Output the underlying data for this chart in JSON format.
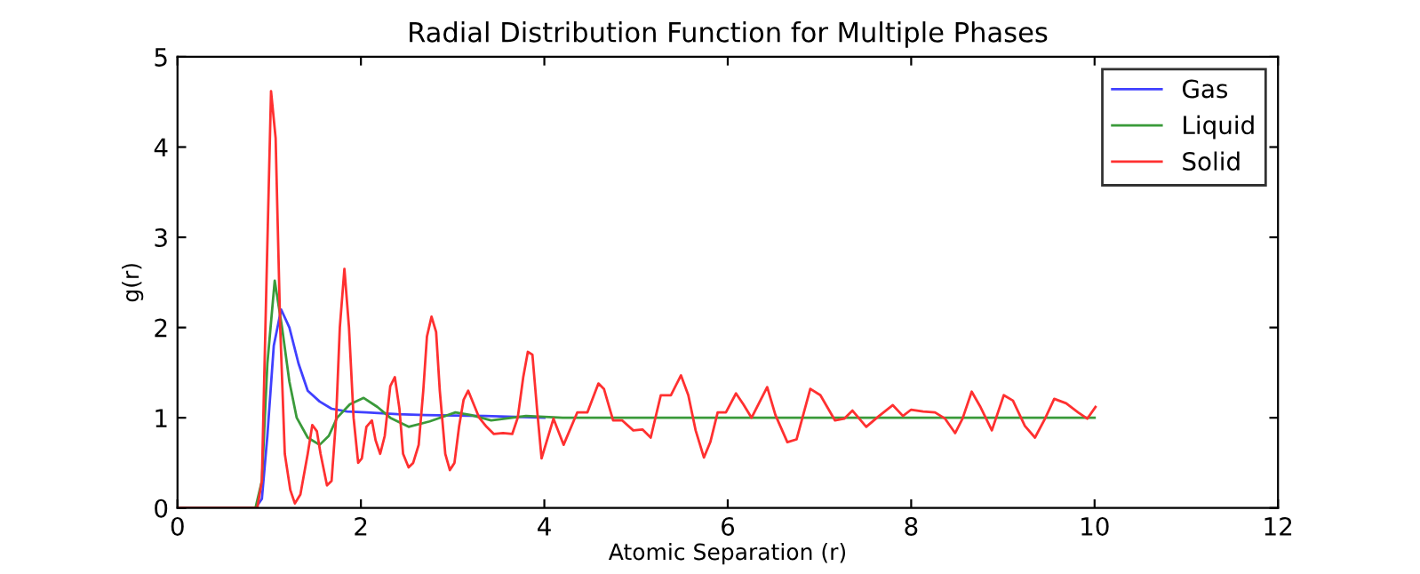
{
  "chart_data": {
    "type": "line",
    "title": "Radial Distribution Function for Multiple Phases",
    "xlabel": "Atomic Separation (r)",
    "ylabel": "g(r)",
    "xlim": [
      0,
      12
    ],
    "ylim": [
      0,
      5
    ],
    "xticks": [
      0,
      2,
      4,
      6,
      8,
      10,
      12
    ],
    "yticks": [
      0,
      1,
      2,
      3,
      4,
      5
    ],
    "grid": false,
    "legend": "top right",
    "marker": "none",
    "line_style": "solid",
    "series": [
      {
        "name": "Gas",
        "color": "#4040ff",
        "x": [
          0,
          0.85,
          0.92,
          0.98,
          1.05,
          1.13,
          1.22,
          1.32,
          1.42,
          1.55,
          1.68,
          1.85,
          2.06,
          2.4,
          2.7,
          3.35,
          4
        ],
        "values": [
          0,
          0,
          0.1,
          0.8,
          1.8,
          2.2,
          2.0,
          1.6,
          1.3,
          1.18,
          1.1,
          1.07,
          1.06,
          1.04,
          1.03,
          1.02,
          1.0
        ]
      },
      {
        "name": "Liquid",
        "color": "#3a9a3a",
        "x": [
          0,
          0.85,
          0.92,
          0.98,
          1.06,
          1.14,
          1.22,
          1.3,
          1.42,
          1.55,
          1.65,
          1.74,
          1.88,
          2.03,
          2.18,
          2.32,
          2.52,
          2.75,
          3.03,
          3.2,
          3.42,
          3.8,
          4.2,
          5,
          6,
          7,
          8,
          9,
          10
        ],
        "values": [
          0,
          0,
          0.3,
          1.6,
          2.52,
          2.0,
          1.4,
          1.0,
          0.78,
          0.7,
          0.8,
          1.0,
          1.15,
          1.22,
          1.12,
          1.0,
          0.9,
          0.96,
          1.06,
          1.03,
          0.97,
          1.02,
          1.0,
          1.0,
          1.0,
          1.0,
          1.0,
          1.0,
          1.0
        ]
      },
      {
        "name": "Solid",
        "color": "#ff3030",
        "x": [
          0,
          0.87,
          0.92,
          0.97,
          1.02,
          1.07,
          1.12,
          1.17,
          1.23,
          1.28,
          1.34,
          1.42,
          1.47,
          1.52,
          1.56,
          1.63,
          1.68,
          1.73,
          1.77,
          1.82,
          1.87,
          1.92,
          1.97,
          2.01,
          2.06,
          2.12,
          2.16,
          2.21,
          2.26,
          2.32,
          2.37,
          2.42,
          2.46,
          2.52,
          2.57,
          2.63,
          2.68,
          2.72,
          2.77,
          2.82,
          2.86,
          2.92,
          2.97,
          3.02,
          3.07,
          3.12,
          3.17,
          3.23,
          3.29,
          3.37,
          3.45,
          3.55,
          3.65,
          3.71,
          3.77,
          3.82,
          3.87,
          3.92,
          3.97,
          4.1,
          4.21,
          4.36,
          4.47,
          4.59,
          4.65,
          4.75,
          4.85,
          4.97,
          5.07,
          5.16,
          5.27,
          5.38,
          5.49,
          5.57,
          5.65,
          5.74,
          5.81,
          5.89,
          5.98,
          6.09,
          6.17,
          6.26,
          6.34,
          6.43,
          6.52,
          6.65,
          6.75,
          6.9,
          7.01,
          7.17,
          7.27,
          7.36,
          7.51,
          7.65,
          7.8,
          7.91,
          8.0,
          8.13,
          8.26,
          8.37,
          8.48,
          8.56,
          8.66,
          8.75,
          8.88,
          9.01,
          9.11,
          9.24,
          9.35,
          9.46,
          9.56,
          9.69,
          9.82,
          9.92,
          10.01
        ],
        "values": [
          0,
          0,
          0.3,
          2.5,
          4.62,
          4.1,
          2.0,
          0.6,
          0.2,
          0.05,
          0.15,
          0.6,
          0.92,
          0.85,
          0.6,
          0.25,
          0.3,
          1.0,
          2.0,
          2.65,
          2.0,
          1.0,
          0.5,
          0.55,
          0.9,
          0.97,
          0.75,
          0.6,
          0.8,
          1.35,
          1.45,
          1.1,
          0.6,
          0.45,
          0.5,
          0.7,
          1.3,
          1.9,
          2.12,
          1.95,
          1.3,
          0.6,
          0.42,
          0.5,
          0.9,
          1.2,
          1.3,
          1.15,
          1.0,
          0.9,
          0.82,
          0.83,
          0.82,
          1.0,
          1.45,
          1.73,
          1.7,
          1.1,
          0.55,
          0.99,
          0.7,
          1.06,
          1.06,
          1.38,
          1.32,
          0.97,
          0.97,
          0.86,
          0.87,
          0.78,
          1.25,
          1.25,
          1.47,
          1.25,
          0.86,
          0.56,
          0.73,
          1.06,
          1.06,
          1.27,
          1.15,
          1.0,
          1.16,
          1.34,
          1.03,
          0.73,
          0.76,
          1.32,
          1.25,
          0.97,
          0.99,
          1.08,
          0.9,
          1.02,
          1.14,
          1.02,
          1.09,
          1.07,
          1.06,
          0.99,
          0.83,
          0.99,
          1.29,
          1.13,
          0.86,
          1.25,
          1.19,
          0.91,
          0.78,
          0.99,
          1.21,
          1.16,
          1.06,
          0.99,
          1.12
        ]
      }
    ]
  }
}
